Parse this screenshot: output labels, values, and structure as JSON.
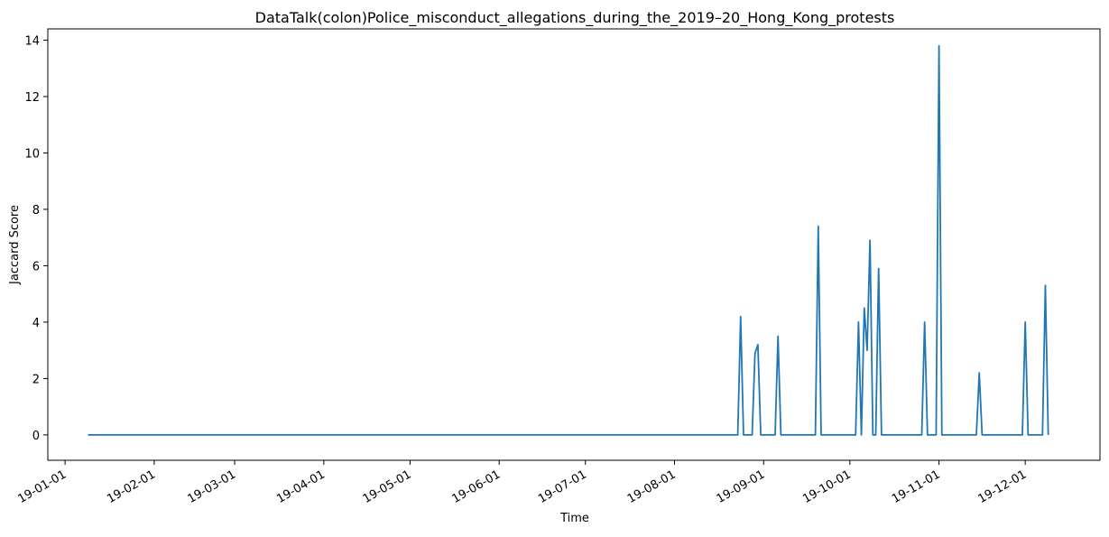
{
  "chart_data": {
    "type": "line",
    "title": "DataTalk(colon)Police_misconduct_allegations_during_the_2019–20_Hong_Kong_protests",
    "xlabel": "Time",
    "ylabel": "Jaccard Score",
    "ylim": [
      -0.9,
      14.4
    ],
    "xlim": [
      "2018-12-26",
      "2019-12-27"
    ],
    "yticks": [
      0,
      2,
      4,
      6,
      8,
      10,
      12,
      14
    ],
    "ytick_labels": [
      "0",
      "2",
      "4",
      "6",
      "8",
      "10",
      "12",
      "14"
    ],
    "xticks": [
      "2019-01-01",
      "2019-02-01",
      "2019-03-01",
      "2019-04-01",
      "2019-05-01",
      "2019-06-01",
      "2019-07-01",
      "2019-08-01",
      "2019-09-01",
      "2019-10-01",
      "2019-11-01",
      "2019-12-01"
    ],
    "xtick_labels": [
      "19-01-01",
      "19-02-01",
      "19-03-01",
      "19-04-01",
      "19-05-01",
      "19-06-01",
      "19-07-01",
      "19-08-01",
      "19-09-01",
      "19-10-01",
      "19-11-01",
      "19-12-01"
    ],
    "line_color": "#1f77b4",
    "series": [
      {
        "x": [
          "2019-01-09",
          "2019-08-23",
          "2019-08-24",
          "2019-08-25",
          "2019-08-26",
          "2019-08-28",
          "2019-08-29",
          "2019-08-30",
          "2019-08-31",
          "2019-09-01",
          "2019-09-05",
          "2019-09-06",
          "2019-09-07",
          "2019-09-19",
          "2019-09-20",
          "2019-09-21",
          "2019-10-03",
          "2019-10-04",
          "2019-10-05",
          "2019-10-06",
          "2019-10-07",
          "2019-10-08",
          "2019-10-09",
          "2019-10-10",
          "2019-10-11",
          "2019-10-12",
          "2019-10-13",
          "2019-10-14",
          "2019-10-26",
          "2019-10-27",
          "2019-10-28",
          "2019-10-31",
          "2019-11-01",
          "2019-11-02",
          "2019-11-14",
          "2019-11-15",
          "2019-11-16",
          "2019-11-30",
          "2019-12-01",
          "2019-12-02",
          "2019-12-07",
          "2019-12-08",
          "2019-12-09"
        ],
        "y": [
          0,
          0,
          4.2,
          0,
          0,
          0,
          2.9,
          3.2,
          0,
          0,
          0,
          3.5,
          0,
          0,
          7.4,
          0,
          0,
          4.0,
          0,
          4.5,
          3.0,
          6.9,
          0,
          0,
          5.9,
          0,
          0,
          0,
          0,
          4.0,
          0,
          0,
          13.8,
          0,
          0,
          2.2,
          0,
          0,
          4.0,
          0,
          0,
          5.3,
          0
        ]
      }
    ]
  }
}
